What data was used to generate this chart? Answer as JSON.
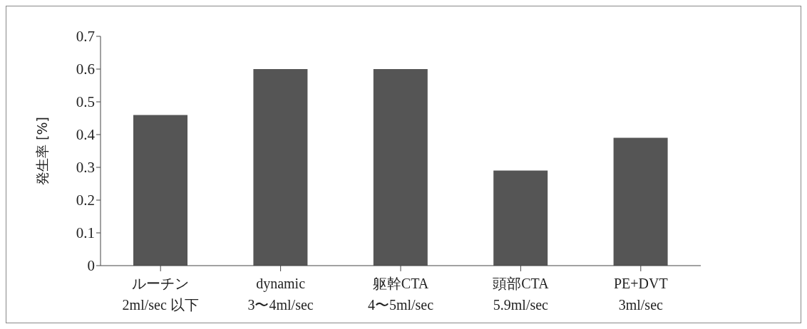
{
  "chart_data": {
    "type": "bar",
    "ylabel": "発生率 [%]",
    "categories": [
      "ルーチン\n2ml/sec 以下",
      "dynamic\n3〜4ml/sec",
      "躯幹CTA\n4〜5ml/sec",
      "頭部CTA\n5.9ml/sec",
      "PE+DVT\n3ml/sec"
    ],
    "values": [
      0.46,
      0.6,
      0.6,
      0.29,
      0.39
    ],
    "color": "#555555",
    "ylim": [
      0,
      0.7
    ],
    "yticks": [
      0,
      0.1,
      0.2,
      0.3,
      0.4,
      0.5,
      0.6,
      0.7
    ],
    "grid": false
  }
}
